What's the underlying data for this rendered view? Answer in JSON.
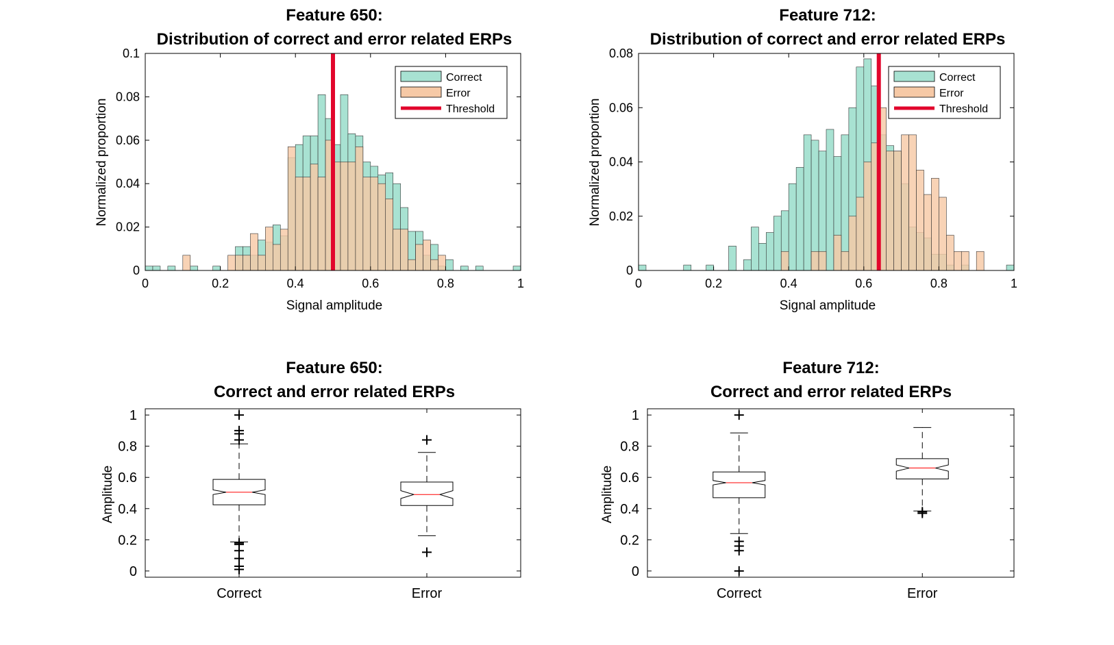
{
  "colors": {
    "correct_fill": "#a8e2d2",
    "error_fill": "#f6c9a6",
    "threshold": "#e2062c",
    "median": "#ff0000",
    "axis": "#000000"
  },
  "chart_data": [
    {
      "type": "bar",
      "title_line1": "Feature 650:",
      "title_line2": "Distribution of correct and error related ERPs",
      "xlabel": "Signal amplitude",
      "ylabel": "Normalized proportion",
      "xlim": [
        0,
        1
      ],
      "ylim": [
        0,
        0.1
      ],
      "xticks": [
        0,
        0.2,
        0.4,
        0.6,
        0.8,
        1
      ],
      "xtick_labels": [
        "0",
        "0.2",
        "0.4",
        "0.6",
        "0.8",
        "1"
      ],
      "yticks": [
        0,
        0.02,
        0.04,
        0.06,
        0.08,
        0.1
      ],
      "ytick_labels": [
        "0",
        "0.02",
        "0.04",
        "0.06",
        "0.08",
        "0.1"
      ],
      "bin_width": 0.02,
      "legend": [
        "Correct",
        "Error",
        "Threshold"
      ],
      "legend_position": "top-right",
      "threshold": 0.5,
      "series": [
        {
          "name": "Correct",
          "bins": [
            [
              0,
              0.002
            ],
            [
              0.02,
              0.002
            ],
            [
              0.06,
              0.002
            ],
            [
              0.12,
              0.002
            ],
            [
              0.18,
              0.002
            ],
            [
              0.24,
              0.011
            ],
            [
              0.26,
              0.011
            ],
            [
              0.28,
              0.007
            ],
            [
              0.3,
              0.014
            ],
            [
              0.32,
              0.013
            ],
            [
              0.34,
              0.021
            ],
            [
              0.36,
              0.016
            ],
            [
              0.38,
              0.052
            ],
            [
              0.4,
              0.058
            ],
            [
              0.42,
              0.062
            ],
            [
              0.44,
              0.062
            ],
            [
              0.46,
              0.081
            ],
            [
              0.48,
              0.07
            ],
            [
              0.5,
              0.058
            ],
            [
              0.52,
              0.081
            ],
            [
              0.54,
              0.063
            ],
            [
              0.56,
              0.062
            ],
            [
              0.58,
              0.05
            ],
            [
              0.6,
              0.048
            ],
            [
              0.62,
              0.044
            ],
            [
              0.64,
              0.045
            ],
            [
              0.66,
              0.04
            ],
            [
              0.68,
              0.029
            ],
            [
              0.7,
              0.018
            ],
            [
              0.72,
              0.018
            ],
            [
              0.74,
              0.007
            ],
            [
              0.76,
              0.012
            ],
            [
              0.78,
              0.002
            ],
            [
              0.8,
              0.005
            ],
            [
              0.84,
              0.002
            ],
            [
              0.88,
              0.002
            ],
            [
              0.98,
              0.002
            ]
          ]
        },
        {
          "name": "Error",
          "bins": [
            [
              0.1,
              0.007
            ],
            [
              0.22,
              0.007
            ],
            [
              0.24,
              0.007
            ],
            [
              0.26,
              0.007
            ],
            [
              0.28,
              0.017
            ],
            [
              0.3,
              0.007
            ],
            [
              0.32,
              0.02
            ],
            [
              0.34,
              0.012
            ],
            [
              0.36,
              0.019
            ],
            [
              0.38,
              0.057
            ],
            [
              0.4,
              0.043
            ],
            [
              0.42,
              0.043
            ],
            [
              0.44,
              0.049
            ],
            [
              0.46,
              0.043
            ],
            [
              0.48,
              0.06
            ],
            [
              0.5,
              0.05
            ],
            [
              0.52,
              0.05
            ],
            [
              0.54,
              0.05
            ],
            [
              0.56,
              0.057
            ],
            [
              0.58,
              0.043
            ],
            [
              0.6,
              0.043
            ],
            [
              0.62,
              0.04
            ],
            [
              0.64,
              0.033
            ],
            [
              0.66,
              0.019
            ],
            [
              0.68,
              0.019
            ],
            [
              0.7,
              0.005
            ],
            [
              0.72,
              0.012
            ],
            [
              0.74,
              0.014
            ],
            [
              0.76,
              0.005
            ],
            [
              0.78,
              0.007
            ]
          ]
        }
      ]
    },
    {
      "type": "bar",
      "title_line1": "Feature 712:",
      "title_line2": "Distribution of correct and error related ERPs",
      "xlabel": "Signal amplitude",
      "ylabel": "Normalized proportion",
      "xlim": [
        0,
        1
      ],
      "ylim": [
        0,
        0.08
      ],
      "xticks": [
        0,
        0.2,
        0.4,
        0.6,
        0.8,
        1
      ],
      "xtick_labels": [
        "0",
        "0.2",
        "0.4",
        "0.6",
        "0.8",
        "1"
      ],
      "yticks": [
        0,
        0.02,
        0.04,
        0.06,
        0.08
      ],
      "ytick_labels": [
        "0",
        "0.02",
        "0.04",
        "0.06",
        "0.08"
      ],
      "bin_width": 0.02,
      "legend": [
        "Correct",
        "Error",
        "Threshold"
      ],
      "legend_position": "top-right",
      "threshold": 0.64,
      "series": [
        {
          "name": "Correct",
          "bins": [
            [
              0,
              0.002
            ],
            [
              0.12,
              0.002
            ],
            [
              0.18,
              0.002
            ],
            [
              0.24,
              0.009
            ],
            [
              0.28,
              0.004
            ],
            [
              0.3,
              0.016
            ],
            [
              0.32,
              0.01
            ],
            [
              0.34,
              0.014
            ],
            [
              0.36,
              0.02
            ],
            [
              0.38,
              0.022
            ],
            [
              0.4,
              0.032
            ],
            [
              0.42,
              0.038
            ],
            [
              0.44,
              0.05
            ],
            [
              0.46,
              0.048
            ],
            [
              0.48,
              0.044
            ],
            [
              0.5,
              0.052
            ],
            [
              0.52,
              0.042
            ],
            [
              0.54,
              0.05
            ],
            [
              0.56,
              0.06
            ],
            [
              0.58,
              0.075
            ],
            [
              0.6,
              0.078
            ],
            [
              0.62,
              0.068
            ],
            [
              0.64,
              0.05
            ],
            [
              0.66,
              0.046
            ],
            [
              0.68,
              0.044
            ],
            [
              0.7,
              0.032
            ],
            [
              0.72,
              0.016
            ],
            [
              0.74,
              0.014
            ],
            [
              0.76,
              0.012
            ],
            [
              0.78,
              0.006
            ],
            [
              0.8,
              0.006
            ],
            [
              0.82,
              0.002
            ],
            [
              0.86,
              0.002
            ],
            [
              0.98,
              0.002
            ]
          ]
        },
        {
          "name": "Error",
          "bins": [
            [
              0.38,
              0.007
            ],
            [
              0.46,
              0.007
            ],
            [
              0.48,
              0.007
            ],
            [
              0.52,
              0.013
            ],
            [
              0.54,
              0.007
            ],
            [
              0.56,
              0.02
            ],
            [
              0.58,
              0.027
            ],
            [
              0.6,
              0.04
            ],
            [
              0.62,
              0.047
            ],
            [
              0.64,
              0.06
            ],
            [
              0.66,
              0.044
            ],
            [
              0.68,
              0.044
            ],
            [
              0.7,
              0.05
            ],
            [
              0.72,
              0.05
            ],
            [
              0.74,
              0.037
            ],
            [
              0.76,
              0.028
            ],
            [
              0.78,
              0.034
            ],
            [
              0.8,
              0.027
            ],
            [
              0.82,
              0.013
            ],
            [
              0.84,
              0.007
            ],
            [
              0.86,
              0.007
            ],
            [
              0.9,
              0.007
            ]
          ]
        }
      ]
    },
    {
      "type": "box",
      "title_line1": "Feature 650:",
      "title_line2": "Correct and error related ERPs",
      "ylabel": "Amplitude",
      "categories": [
        "Correct",
        "Error"
      ],
      "ylim": [
        -0.04,
        1.04
      ],
      "yticks": [
        0,
        0.2,
        0.4,
        0.6,
        0.8,
        1
      ],
      "ytick_labels": [
        "0",
        "0.2",
        "0.4",
        "0.6",
        "0.8",
        "1"
      ],
      "boxes": [
        {
          "name": "Correct",
          "q1": 0.424,
          "median": 0.505,
          "q3": 0.587,
          "notch_low": 0.49,
          "notch_high": 0.52,
          "whisker_low": 0.186,
          "whisker_high": 0.815,
          "outliers": [
            1.0,
            0.9,
            0.88,
            0.84,
            0.18,
            0.17,
            0.13,
            0.08,
            0.03,
            0.01
          ]
        },
        {
          "name": "Error",
          "q1": 0.42,
          "median": 0.49,
          "q3": 0.57,
          "notch_low": 0.465,
          "notch_high": 0.515,
          "whisker_low": 0.226,
          "whisker_high": 0.76,
          "outliers": [
            0.84,
            0.12
          ]
        }
      ]
    },
    {
      "type": "box",
      "title_line1": "Feature 712:",
      "title_line2": "Correct and error related ERPs",
      "ylabel": "Amplitude",
      "categories": [
        "Correct",
        "Error"
      ],
      "ylim": [
        -0.04,
        1.04
      ],
      "yticks": [
        0,
        0.2,
        0.4,
        0.6,
        0.8,
        1
      ],
      "ytick_labels": [
        "0",
        "0.2",
        "0.4",
        "0.6",
        "0.8",
        "1"
      ],
      "boxes": [
        {
          "name": "Correct",
          "q1": 0.47,
          "median": 0.566,
          "q3": 0.635,
          "notch_low": 0.552,
          "notch_high": 0.58,
          "whisker_low": 0.24,
          "whisker_high": 0.885,
          "outliers": [
            1.0,
            0.19,
            0.16,
            0.13,
            0.0
          ]
        },
        {
          "name": "Error",
          "q1": 0.59,
          "median": 0.66,
          "q3": 0.72,
          "notch_low": 0.64,
          "notch_high": 0.68,
          "whisker_low": 0.385,
          "whisker_high": 0.92,
          "outliers": [
            0.38,
            0.37
          ]
        }
      ]
    }
  ]
}
